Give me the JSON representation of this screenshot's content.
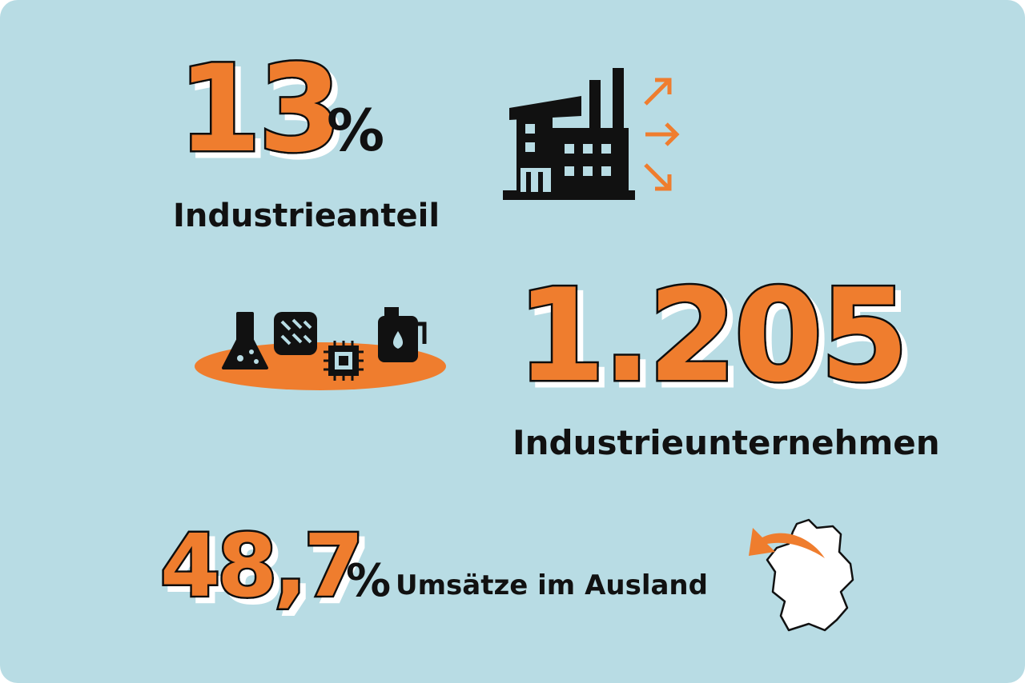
{
  "stats": [
    {
      "value": "13",
      "unit": "%",
      "label": "Industrieanteil"
    },
    {
      "value": "1.205",
      "label": "Industrieunternehmen"
    },
    {
      "value": "48,7",
      "unit": "%",
      "label": "Umsätze im Ausland"
    }
  ]
}
